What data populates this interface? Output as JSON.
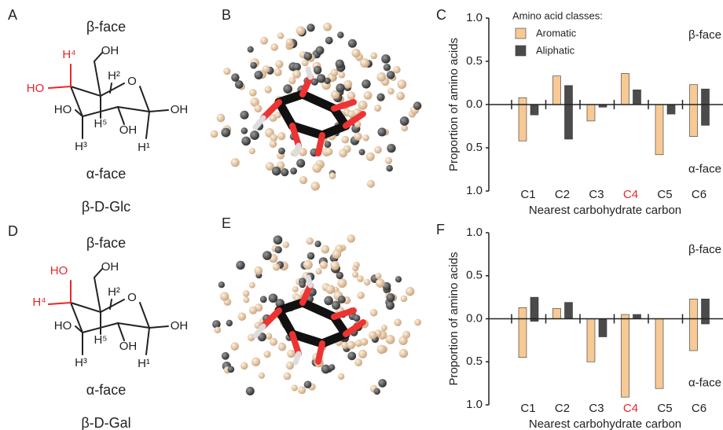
{
  "structures": [
    {
      "letter": "A",
      "top": "β-face",
      "bottom": "α-face",
      "name": "β-D-Glc",
      "atoms": [
        "H⁴",
        "HO",
        "OH",
        "H²",
        "O",
        "HO",
        "OH",
        "H⁵",
        "OH",
        "H³",
        "H¹"
      ]
    },
    {
      "letter": "D",
      "top": "β-face",
      "bottom": "α-face",
      "name": "β-D-Gal",
      "atoms": [
        "HO",
        "H⁴",
        "OH",
        "H²",
        "O",
        "HO",
        "OH",
        "H⁵",
        "OH",
        "H³",
        "H¹"
      ]
    }
  ],
  "renders": [
    "B",
    "E"
  ],
  "chart_data": [
    {
      "type": "bar",
      "letter": "C",
      "ylabel": "Proportion of amino acids",
      "xlabel": "Nearest carbohydrate carbon",
      "categories": [
        "C1",
        "C2",
        "C3",
        "C4",
        "C5",
        "C6"
      ],
      "category_colors": [
        "#222222",
        "#222222",
        "#222222",
        "#e8262a",
        "#222222",
        "#222222"
      ],
      "ylim": [
        -1,
        1
      ],
      "yticks": [
        {
          "value": -1,
          "label": "1.0"
        },
        {
          "value": -0.5,
          "label": "0.5"
        },
        {
          "value": 0,
          "label": "0.0"
        },
        {
          "value": 0.5,
          "label": "0.5"
        },
        {
          "value": 1,
          "label": "1.0"
        }
      ],
      "annotations": [
        "β-face",
        "α-face"
      ],
      "legend": true,
      "legend_title": "Amino acid classes:",
      "series": [
        {
          "name": "Aromatic",
          "color": "#f7c995",
          "values": [
            0.08,
            0.33,
            0,
            0.36,
            0,
            0.23
          ],
          "alpha_values": [
            -0.42,
            0,
            -0.19,
            0,
            -0.58,
            -0.37
          ]
        },
        {
          "name": "Aliphatic",
          "color": "#4b4b4b",
          "values": [
            0,
            0.22,
            0,
            0.17,
            0,
            0.18
          ],
          "alpha_values": [
            -0.12,
            -0.4,
            -0.03,
            0,
            -0.11,
            -0.24
          ]
        }
      ]
    },
    {
      "type": "bar",
      "letter": "F",
      "ylabel": "Proportion of amino acids",
      "xlabel": "Nearest carbohydrate carbon",
      "categories": [
        "C1",
        "C2",
        "C3",
        "C4",
        "C5",
        "C6"
      ],
      "category_colors": [
        "#222222",
        "#222222",
        "#222222",
        "#e8262a",
        "#222222",
        "#222222"
      ],
      "ylim": [
        -1,
        1
      ],
      "yticks": [
        {
          "value": -1,
          "label": "1.0"
        },
        {
          "value": -0.5,
          "label": "0.5"
        },
        {
          "value": 0,
          "label": "0.0"
        },
        {
          "value": 0.5,
          "label": "0.5"
        },
        {
          "value": 1,
          "label": "1.0"
        }
      ],
      "annotations": [
        "β-face",
        "α-face"
      ],
      "legend": false,
      "series": [
        {
          "color": "#f7c995",
          "values": [
            0.13,
            0.12,
            0,
            0.05,
            0,
            0.23
          ],
          "alpha_values": [
            -0.45,
            0,
            -0.5,
            -0.91,
            -0.81,
            -0.37
          ]
        },
        {
          "color": "#4b4b4b",
          "values": [
            0.25,
            0.19,
            0,
            0.05,
            0,
            0.23
          ],
          "alpha_values": [
            -0.03,
            0,
            -0.21,
            0,
            0,
            -0.06
          ]
        }
      ]
    }
  ]
}
